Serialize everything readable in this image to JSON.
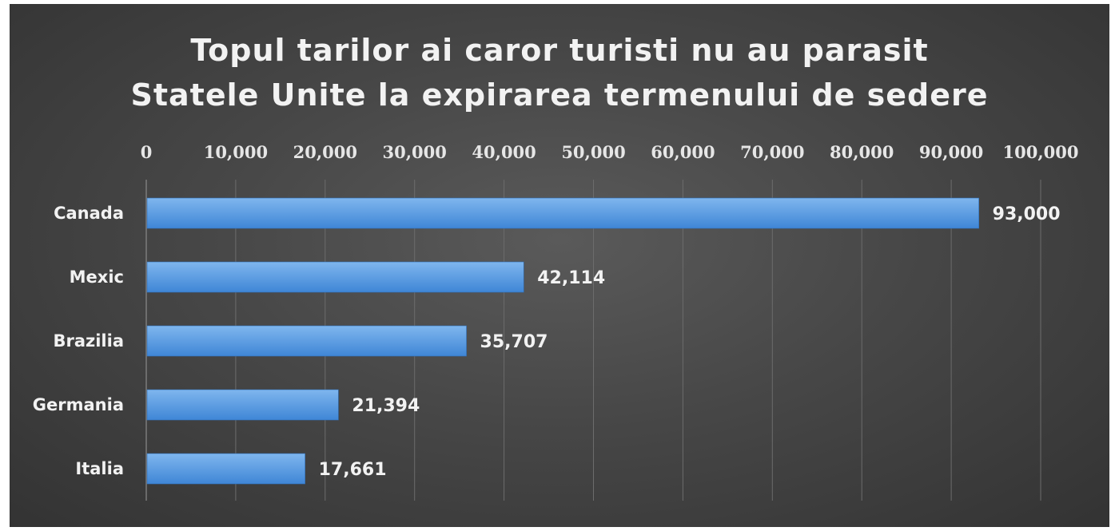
{
  "chart_data": {
    "type": "bar",
    "orientation": "horizontal",
    "title_lines": [
      "Topul tarilor ai caror turisti nu au parasit",
      "Statele Unite la expirarea termenului de sedere"
    ],
    "categories": [
      "Canada",
      "Mexic",
      "Brazilia",
      "Germania",
      "Italia"
    ],
    "values": [
      93000,
      42114,
      35707,
      21394,
      17661
    ],
    "value_labels": [
      "93,000",
      "42,114",
      "35,707",
      "21,394",
      "17,661"
    ],
    "xlim": [
      0,
      100000
    ],
    "x_ticks": [
      0,
      10000,
      20000,
      30000,
      40000,
      50000,
      60000,
      70000,
      80000,
      90000,
      100000
    ],
    "x_tick_labels": [
      "0",
      "10,000",
      "20,000",
      "30,000",
      "40,000",
      "50,000",
      "60,000",
      "70,000",
      "80,000",
      "90,000",
      "100,000"
    ],
    "x_axis_position": "top",
    "grid": true,
    "legend": "none",
    "colors": {
      "bar_light": "#7fb6ee",
      "bar_dark": "#3f86d6",
      "background": "#474747",
      "text": "#f2f2f2",
      "grid": "#6c6c6c"
    }
  }
}
